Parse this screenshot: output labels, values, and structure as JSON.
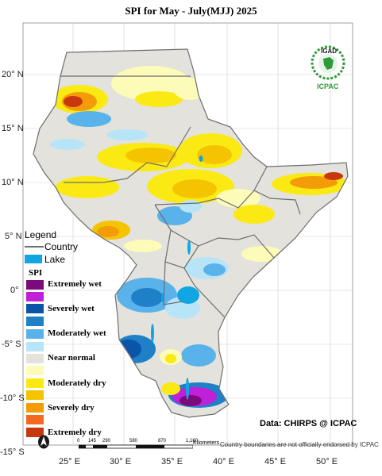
{
  "title": "SPI  for  May - July(MJJ) 2025",
  "lat_labels": [
    "20° N",
    "15° N",
    "10° N",
    "5° N",
    "0°",
    "-5° S",
    "-10° S",
    "-15° S"
  ],
  "lon_labels": [
    "25° E",
    "30° E",
    "35° E",
    "40° E",
    "45° E",
    "50° E"
  ],
  "legend": {
    "title": "Legend",
    "country_label": "Country",
    "lake_label": "Lake",
    "spi_title": "SPI",
    "classes": [
      {
        "label": "Extremely wet",
        "color": "#7b0a7b"
      },
      {
        "label": "",
        "color": "#c020d8"
      },
      {
        "label": "Severely wet",
        "color": "#0a55a8"
      },
      {
        "label": "",
        "color": "#1f80c8"
      },
      {
        "label": "Moderately wet",
        "color": "#5ab2ea"
      },
      {
        "label": "",
        "color": "#b8e4f8"
      },
      {
        "label": "Near normal",
        "color": "#e3e2dc"
      },
      {
        "label": "",
        "color": "#fdfbb8"
      },
      {
        "label": "Moderately dry",
        "color": "#fbe914"
      },
      {
        "label": "",
        "color": "#f5c400"
      },
      {
        "label": "Severely dry",
        "color": "#f49b08"
      },
      {
        "label": "",
        "color": "#f36a1e"
      },
      {
        "label": "Extremely dry",
        "color": "#c8380e"
      }
    ],
    "lake_color": "#10a6e4",
    "country_line_color": "#6e6e6e"
  },
  "scale": {
    "ticks": [
      "0",
      "145",
      "290",
      "580",
      "870",
      "1,160"
    ],
    "unit": "Kilometers"
  },
  "credit": "Data: CHIRPS @ ICPAC",
  "disclaimer": "Country boundaries are not officially endorsed by ICPAC",
  "logo": {
    "top_text": "IGAD",
    "bottom_text": "ICPAC"
  },
  "icons": [
    "north-arrow-icon",
    "igad-logo-icon"
  ]
}
